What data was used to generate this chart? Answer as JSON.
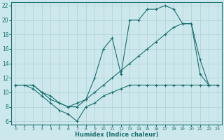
{
  "xlabel": "Humidex (Indice chaleur)",
  "background_color": "#cce8ec",
  "grid_color": "#b0d0d4",
  "line_color": "#1a7070",
  "xlim": [
    -0.5,
    23.5
  ],
  "ylim": [
    5.5,
    22.5
  ],
  "xticks": [
    0,
    1,
    2,
    3,
    4,
    5,
    6,
    7,
    8,
    9,
    10,
    11,
    12,
    13,
    14,
    15,
    16,
    17,
    18,
    19,
    20,
    21,
    22,
    23
  ],
  "yticks": [
    6,
    8,
    10,
    12,
    14,
    16,
    18,
    20,
    22
  ],
  "line1_x": [
    0,
    1,
    2,
    3,
    4,
    5,
    6,
    7,
    8,
    9,
    10,
    11,
    12,
    13,
    14,
    15,
    16,
    17,
    18,
    19,
    20,
    21,
    22,
    23
  ],
  "line1_y": [
    11,
    11,
    10.5,
    9.5,
    8.5,
    7.5,
    7,
    6,
    8,
    8.5,
    9.5,
    10,
    10.5,
    11,
    11,
    11,
    11,
    11,
    11,
    11,
    11,
    11,
    11,
    11
  ],
  "line2_x": [
    0,
    2,
    3,
    4,
    5,
    6,
    7,
    8,
    9,
    10,
    11,
    12,
    13,
    14,
    15,
    16,
    17,
    18,
    19,
    20,
    21,
    22,
    23
  ],
  "line2_y": [
    11,
    11,
    10,
    9,
    8.5,
    8,
    8,
    9,
    10,
    11,
    12,
    13,
    14,
    15,
    16,
    17,
    18,
    19,
    19.5,
    19.5,
    14.5,
    11,
    11
  ],
  "line3_x": [
    0,
    2,
    3,
    4,
    5,
    6,
    7,
    8,
    9,
    10,
    11,
    12,
    13,
    14,
    15,
    16,
    17,
    18,
    19,
    20,
    21,
    22,
    23
  ],
  "line3_y": [
    11,
    11,
    10,
    9.5,
    8.5,
    8,
    8.5,
    9,
    12,
    16,
    17.5,
    12.5,
    20,
    20,
    21.5,
    21.5,
    22,
    21.5,
    19.5,
    19.5,
    12.5,
    11,
    11
  ]
}
